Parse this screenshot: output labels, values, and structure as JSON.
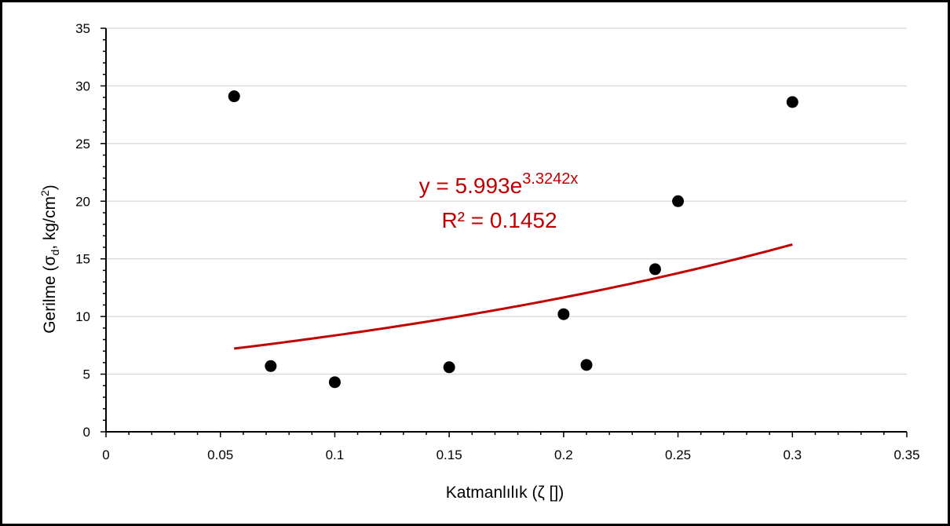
{
  "chart_data": {
    "type": "scatter",
    "title": "",
    "xlabel": "Katmanlılık (ζ [])",
    "ylabel": "Gerilme (σd, kg/cm²)",
    "ylabel_parts": {
      "prefix": "Gerilme (σ",
      "sub": "d",
      "mid": ", kg/cm",
      "sup": "2",
      "suffix": ")"
    },
    "xlim": [
      0,
      0.35
    ],
    "ylim": [
      0,
      35
    ],
    "x_ticks": [
      0,
      0.05,
      0.1,
      0.15,
      0.2,
      0.25,
      0.3,
      0.35
    ],
    "x_tick_labels": [
      "0",
      "0.05",
      "0.1",
      "0.15",
      "0.2",
      "0.25",
      "0.3",
      "0.35"
    ],
    "y_ticks": [
      0,
      5,
      10,
      15,
      20,
      25,
      30,
      35
    ],
    "y_tick_labels": [
      "0",
      "5",
      "10",
      "15",
      "20",
      "25",
      "30",
      "35"
    ],
    "grid": {
      "horizontal": true,
      "vertical": false
    },
    "legend": "none",
    "series": [
      {
        "points": [
          {
            "x": 0.056,
            "y": 29.1
          },
          {
            "x": 0.072,
            "y": 5.7
          },
          {
            "x": 0.1,
            "y": 4.3
          },
          {
            "x": 0.15,
            "y": 5.6
          },
          {
            "x": 0.2,
            "y": 10.2
          },
          {
            "x": 0.21,
            "y": 5.8
          },
          {
            "x": 0.24,
            "y": 14.1
          },
          {
            "x": 0.25,
            "y": 20.0
          },
          {
            "x": 0.3,
            "y": 28.6
          }
        ]
      }
    ],
    "trendline": {
      "type": "exponential",
      "a": 5.993,
      "b": 3.3242,
      "x_range": [
        0.056,
        0.3
      ],
      "equation_parts": {
        "base": "y = 5.993e",
        "exponent": "3.3242x"
      },
      "r_squared_label": "R² = 0.1452"
    },
    "colors": {
      "points": "#000000",
      "trendline": "#C00000",
      "grid": "#D9D9D9",
      "axis": "#000000"
    }
  }
}
